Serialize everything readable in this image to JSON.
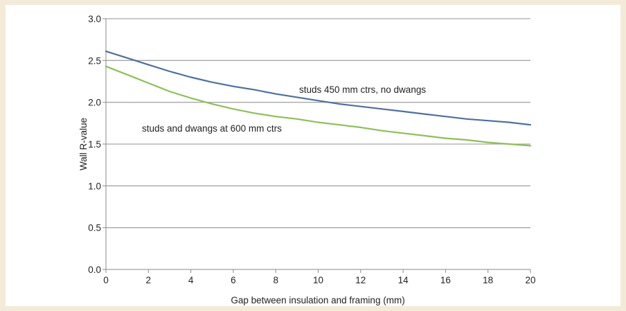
{
  "chart_data": {
    "type": "line",
    "title": "",
    "xlabel": "Gap between insulation and framing (mm)",
    "ylabel": "Wall R-value",
    "xlim": [
      0,
      20
    ],
    "ylim": [
      0,
      3.0
    ],
    "xticks": [
      0,
      2,
      4,
      6,
      8,
      10,
      12,
      14,
      16,
      18,
      20
    ],
    "yticks": [
      "0.0",
      "0.5",
      "1.0",
      "1.5",
      "2.0",
      "2.5",
      "3.0"
    ],
    "grid": "horizontal",
    "colors": {
      "studs_450": "#4a6fa8",
      "studs_dwangs_600": "#8cc152",
      "grid": "#a6a6a6"
    },
    "series": [
      {
        "name": "studs 450 mm ctrs, no dwangs",
        "color": "#4a6fa8",
        "x": [
          0,
          1,
          2,
          3,
          4,
          5,
          6,
          7,
          8,
          9,
          10,
          11,
          12,
          13,
          14,
          15,
          16,
          17,
          18,
          19,
          20
        ],
        "y": [
          2.61,
          2.53,
          2.45,
          2.37,
          2.3,
          2.24,
          2.19,
          2.15,
          2.1,
          2.06,
          2.02,
          1.98,
          1.95,
          1.92,
          1.89,
          1.86,
          1.83,
          1.8,
          1.78,
          1.76,
          1.73
        ]
      },
      {
        "name": "studs and dwangs at 600 mm ctrs",
        "color": "#8cc152",
        "x": [
          0,
          1,
          2,
          3,
          4,
          5,
          6,
          7,
          8,
          9,
          10,
          11,
          12,
          13,
          14,
          15,
          16,
          17,
          18,
          19,
          20
        ],
        "y": [
          2.43,
          2.33,
          2.23,
          2.13,
          2.05,
          1.98,
          1.92,
          1.87,
          1.83,
          1.8,
          1.76,
          1.73,
          1.7,
          1.66,
          1.63,
          1.6,
          1.57,
          1.55,
          1.52,
          1.5,
          1.48
        ]
      }
    ]
  }
}
